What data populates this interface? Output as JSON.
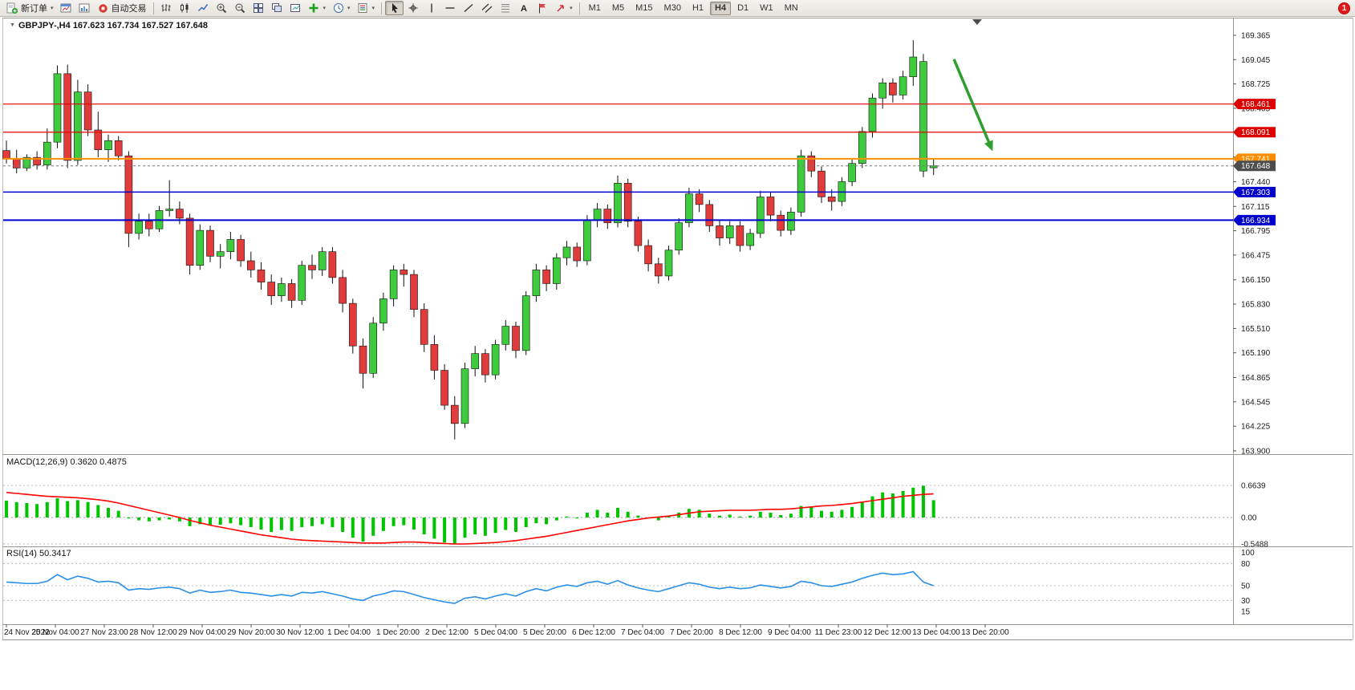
{
  "toolbar": {
    "buttons": [
      {
        "name": "new-order",
        "icon": "new-order",
        "label": "新订单",
        "dropdown": true
      },
      {
        "name": "new-chart",
        "icon": "new-chart"
      },
      {
        "name": "profiles",
        "icon": "profiles"
      },
      {
        "name": "auto-trading",
        "icon": "auto-trading",
        "label": "自动交易"
      },
      {
        "sep": true
      },
      {
        "name": "bar-chart",
        "icon": "bars"
      },
      {
        "name": "candlestick-chart",
        "icon": "candles"
      },
      {
        "name": "line-chart",
        "icon": "line"
      },
      {
        "name": "zoom-in",
        "icon": "zoom-in"
      },
      {
        "name": "zoom-out",
        "icon": "zoom-out"
      },
      {
        "name": "tile-windows",
        "icon": "tile"
      },
      {
        "name": "cascade-windows",
        "icon": "arrange"
      },
      {
        "name": "track-chart",
        "icon": "track"
      },
      {
        "name": "indicators",
        "icon": "indicators",
        "dropdown": true
      },
      {
        "name": "periods",
        "icon": "periods",
        "dropdown": true
      },
      {
        "name": "templates",
        "icon": "templates",
        "dropdown": true
      },
      {
        "sep": true
      },
      {
        "name": "cursor",
        "icon": "cursor",
        "active": true
      },
      {
        "name": "crosshair",
        "icon": "crosshair"
      },
      {
        "name": "vertical-line",
        "icon": "vline"
      },
      {
        "name": "horizontal-line",
        "icon": "hline"
      },
      {
        "name": "trendline",
        "icon": "trendline"
      },
      {
        "name": "equidistant-channel",
        "icon": "channel"
      },
      {
        "name": "fibonacci-retracement",
        "icon": "fibo"
      },
      {
        "name": "text",
        "icon": "text"
      },
      {
        "name": "text-label",
        "icon": "label"
      },
      {
        "name": "arrows",
        "icon": "arrows",
        "dropdown": true
      },
      {
        "sep": true
      }
    ],
    "timeframes": [
      "M1",
      "M5",
      "M15",
      "M30",
      "H1",
      "H4",
      "D1",
      "W1",
      "MN"
    ],
    "active_timeframe": "H4",
    "notification_badge": "1"
  },
  "chart_data": {
    "type": "candlestick",
    "title": "GBPJPY-,H4",
    "ohlc_line": "167.623 167.734 167.527 167.648",
    "colors": {
      "up": "#3ecc3e",
      "down": "#e13b3b",
      "wick": "#111111"
    },
    "price_ticks": [
      "169.365",
      "169.045",
      "168.725",
      "168.405",
      "168.085",
      "167.765",
      "167.440",
      "167.115",
      "166.795",
      "166.475",
      "166.150",
      "165.830",
      "165.510",
      "165.190",
      "164.865",
      "164.545",
      "164.225",
      "163.900"
    ],
    "time_labels": [
      "24 Nov 2022",
      "25 Nov 04:00",
      "27 Nov 23:00",
      "28 Nov 12:00",
      "29 Nov 04:00",
      "29 Nov 20:00",
      "30 Nov 12:00",
      "1 Dec 04:00",
      "1 Dec 20:00",
      "2 Dec 12:00",
      "5 Dec 04:00",
      "5 Dec 20:00",
      "6 Dec 12:00",
      "7 Dec 04:00",
      "7 Dec 20:00",
      "8 Dec 12:00",
      "9 Dec 04:00",
      "11 Dec 23:00",
      "12 Dec 12:00",
      "13 Dec 04:00",
      "13 Dec 20:00"
    ],
    "levels": [
      {
        "label": "168.461",
        "price": 168.461,
        "color": "#e00000",
        "width": 1.2,
        "tag_bg": "#dd0000"
      },
      {
        "label": "168.091",
        "price": 168.091,
        "color": "#e00000",
        "width": 1.2,
        "tag_bg": "#dd0000"
      },
      {
        "label": "167.741",
        "price": 167.741,
        "color": "#ff9100",
        "width": 2,
        "tag_bg": "#ff8c00"
      },
      {
        "label": "167.303",
        "price": 167.303,
        "color": "#0000d0",
        "width": 1.5,
        "tag_bg": "#0000cc"
      },
      {
        "label": "166.934",
        "price": 166.934,
        "color": "#0000d0",
        "width": 2,
        "tag_bg": "#0000cc"
      }
    ],
    "current_price": {
      "label": "167.648",
      "price": 167.648,
      "tag_bg": "#4d4d4d"
    },
    "arrow_annotation": {
      "color": "#2f9e2f",
      "from": {
        "bar": 93,
        "price": 169.05
      },
      "to": {
        "bar": 96.8,
        "price": 167.84
      }
    },
    "candles": [
      [
        167.85,
        167.98,
        167.68,
        167.74
      ],
      [
        167.74,
        167.86,
        167.55,
        167.62
      ],
      [
        167.62,
        167.8,
        167.58,
        167.76
      ],
      [
        167.76,
        167.84,
        167.6,
        167.66
      ],
      [
        167.66,
        168.14,
        167.6,
        167.96
      ],
      [
        167.96,
        168.97,
        167.88,
        168.86
      ],
      [
        168.86,
        168.98,
        167.62,
        167.72
      ],
      [
        167.72,
        168.78,
        167.66,
        168.62
      ],
      [
        168.62,
        168.72,
        168.04,
        168.12
      ],
      [
        168.12,
        168.36,
        167.76,
        167.86
      ],
      [
        167.86,
        168.06,
        167.7,
        167.98
      ],
      [
        167.98,
        168.04,
        167.72,
        167.78
      ],
      [
        167.78,
        167.84,
        166.58,
        166.76
      ],
      [
        166.76,
        167.02,
        166.68,
        166.92
      ],
      [
        166.92,
        167.02,
        166.72,
        166.82
      ],
      [
        166.82,
        167.12,
        166.78,
        167.06
      ],
      [
        167.06,
        167.46,
        166.98,
        167.08
      ],
      [
        167.08,
        167.18,
        166.88,
        166.96
      ],
      [
        166.96,
        167.02,
        166.22,
        166.34
      ],
      [
        166.34,
        166.88,
        166.28,
        166.8
      ],
      [
        166.8,
        166.86,
        166.38,
        166.46
      ],
      [
        166.46,
        166.62,
        166.3,
        166.52
      ],
      [
        166.52,
        166.78,
        166.42,
        166.68
      ],
      [
        166.68,
        166.74,
        166.32,
        166.4
      ],
      [
        166.4,
        166.52,
        166.18,
        166.28
      ],
      [
        166.28,
        166.38,
        166.02,
        166.12
      ],
      [
        166.12,
        166.22,
        165.82,
        165.94
      ],
      [
        165.94,
        166.18,
        165.86,
        166.1
      ],
      [
        166.1,
        166.16,
        165.78,
        165.88
      ],
      [
        165.88,
        166.4,
        165.82,
        166.34
      ],
      [
        166.34,
        166.48,
        166.16,
        166.28
      ],
      [
        166.28,
        166.58,
        166.2,
        166.52
      ],
      [
        166.52,
        166.58,
        166.1,
        166.18
      ],
      [
        166.18,
        166.28,
        165.72,
        165.84
      ],
      [
        165.84,
        165.9,
        165.18,
        165.28
      ],
      [
        165.28,
        165.38,
        164.72,
        164.92
      ],
      [
        164.92,
        165.66,
        164.86,
        165.58
      ],
      [
        165.58,
        165.98,
        165.48,
        165.9
      ],
      [
        165.9,
        166.34,
        165.8,
        166.28
      ],
      [
        166.28,
        166.36,
        166.06,
        166.22
      ],
      [
        166.22,
        166.28,
        165.66,
        165.76
      ],
      [
        165.76,
        165.84,
        165.2,
        165.3
      ],
      [
        165.3,
        165.42,
        164.84,
        164.96
      ],
      [
        164.96,
        165.04,
        164.44,
        164.5
      ],
      [
        164.5,
        164.62,
        164.05,
        164.26
      ],
      [
        164.26,
        165.06,
        164.2,
        164.98
      ],
      [
        164.98,
        165.28,
        164.88,
        165.18
      ],
      [
        165.18,
        165.24,
        164.8,
        164.9
      ],
      [
        164.9,
        165.36,
        164.84,
        165.3
      ],
      [
        165.3,
        165.62,
        165.22,
        165.54
      ],
      [
        165.54,
        165.6,
        165.12,
        165.22
      ],
      [
        165.22,
        166.0,
        165.16,
        165.94
      ],
      [
        165.94,
        166.36,
        165.86,
        166.28
      ],
      [
        166.28,
        166.34,
        166.0,
        166.1
      ],
      [
        166.1,
        166.5,
        166.02,
        166.44
      ],
      [
        166.44,
        166.66,
        166.34,
        166.58
      ],
      [
        166.58,
        166.64,
        166.32,
        166.4
      ],
      [
        166.4,
        167.0,
        166.34,
        166.94
      ],
      [
        166.94,
        167.16,
        166.84,
        167.08
      ],
      [
        167.08,
        167.14,
        166.82,
        166.9
      ],
      [
        166.9,
        167.52,
        166.84,
        167.42
      ],
      [
        167.42,
        167.48,
        166.84,
        166.92
      ],
      [
        166.92,
        166.98,
        166.52,
        166.6
      ],
      [
        166.6,
        166.68,
        166.26,
        166.36
      ],
      [
        166.36,
        166.44,
        166.1,
        166.2
      ],
      [
        166.2,
        166.6,
        166.14,
        166.54
      ],
      [
        166.54,
        166.96,
        166.48,
        166.9
      ],
      [
        166.9,
        167.36,
        166.84,
        167.28
      ],
      [
        167.28,
        167.34,
        167.04,
        167.14
      ],
      [
        167.14,
        167.2,
        166.78,
        166.86
      ],
      [
        166.86,
        166.94,
        166.6,
        166.7
      ],
      [
        166.7,
        166.92,
        166.62,
        166.86
      ],
      [
        166.86,
        166.92,
        166.52,
        166.6
      ],
      [
        166.6,
        166.82,
        166.54,
        166.76
      ],
      [
        166.76,
        167.32,
        166.7,
        167.24
      ],
      [
        167.24,
        167.3,
        166.92,
        167.0
      ],
      [
        167.0,
        167.06,
        166.72,
        166.8
      ],
      [
        166.8,
        167.1,
        166.74,
        167.04
      ],
      [
        167.04,
        167.86,
        166.98,
        167.78
      ],
      [
        167.78,
        167.84,
        167.5,
        167.58
      ],
      [
        167.58,
        167.64,
        167.16,
        167.24
      ],
      [
        167.24,
        167.34,
        167.06,
        167.18
      ],
      [
        167.18,
        167.5,
        167.12,
        167.44
      ],
      [
        167.44,
        167.74,
        167.38,
        167.68
      ],
      [
        167.68,
        168.16,
        167.62,
        168.1
      ],
      [
        168.1,
        168.6,
        168.02,
        168.54
      ],
      [
        168.54,
        168.8,
        168.4,
        168.74
      ],
      [
        168.74,
        168.8,
        168.48,
        168.58
      ],
      [
        168.58,
        168.9,
        168.52,
        168.82
      ],
      [
        168.82,
        169.3,
        168.7,
        169.08
      ],
      [
        167.58,
        169.12,
        167.5,
        169.02
      ],
      [
        167.623,
        167.734,
        167.527,
        167.648
      ]
    ]
  },
  "macd": {
    "label": "MACD(12,26,9) 0.3620 0.4875",
    "histogram_color": "#00c400",
    "signal_color": "#ff0000",
    "scale": [
      {
        "v": 0.6639,
        "label": "0.6639"
      },
      {
        "v": 0,
        "label": "0.00"
      },
      {
        "v": -0.5488,
        "label": "-0.5488"
      }
    ],
    "histogram": [
      0.35,
      0.32,
      0.3,
      0.28,
      0.32,
      0.4,
      0.34,
      0.36,
      0.32,
      0.26,
      0.2,
      0.14,
      -0.02,
      -0.06,
      -0.08,
      -0.06,
      -0.04,
      -0.08,
      -0.18,
      -0.14,
      -0.16,
      -0.15,
      -0.12,
      -0.16,
      -0.2,
      -0.25,
      -0.3,
      -0.26,
      -0.28,
      -0.2,
      -0.18,
      -0.14,
      -0.2,
      -0.3,
      -0.42,
      -0.5,
      -0.38,
      -0.28,
      -0.18,
      -0.16,
      -0.25,
      -0.35,
      -0.44,
      -0.52,
      -0.55,
      -0.42,
      -0.35,
      -0.38,
      -0.32,
      -0.26,
      -0.3,
      -0.2,
      -0.12,
      -0.14,
      -0.06,
      0.02,
      -0.02,
      0.1,
      0.16,
      0.1,
      0.2,
      0.12,
      0.04,
      -0.02,
      -0.06,
      0.02,
      0.1,
      0.18,
      0.16,
      0.08,
      0.04,
      0.06,
      0.02,
      0.04,
      0.12,
      0.1,
      0.05,
      0.08,
      0.24,
      0.22,
      0.14,
      0.12,
      0.16,
      0.22,
      0.32,
      0.44,
      0.52,
      0.5,
      0.55,
      0.62,
      0.66,
      0.36
    ],
    "signal": [
      0.52,
      0.5,
      0.48,
      0.46,
      0.44,
      0.43,
      0.42,
      0.41,
      0.39,
      0.37,
      0.34,
      0.3,
      0.25,
      0.2,
      0.15,
      0.1,
      0.05,
      0.0,
      -0.06,
      -0.11,
      -0.16,
      -0.2,
      -0.24,
      -0.28,
      -0.32,
      -0.36,
      -0.39,
      -0.42,
      -0.45,
      -0.47,
      -0.48,
      -0.49,
      -0.5,
      -0.51,
      -0.52,
      -0.53,
      -0.53,
      -0.53,
      -0.52,
      -0.51,
      -0.51,
      -0.52,
      -0.53,
      -0.54,
      -0.55,
      -0.55,
      -0.54,
      -0.53,
      -0.52,
      -0.5,
      -0.48,
      -0.45,
      -0.42,
      -0.39,
      -0.35,
      -0.31,
      -0.27,
      -0.23,
      -0.19,
      -0.15,
      -0.11,
      -0.07,
      -0.04,
      -0.01,
      0.01,
      0.03,
      0.06,
      0.09,
      0.12,
      0.13,
      0.14,
      0.15,
      0.15,
      0.15,
      0.16,
      0.17,
      0.17,
      0.18,
      0.2,
      0.22,
      0.24,
      0.25,
      0.27,
      0.29,
      0.32,
      0.35,
      0.38,
      0.41,
      0.44,
      0.46,
      0.48,
      0.49
    ]
  },
  "rsi": {
    "label": "RSI(14) 50.3417",
    "line_color": "#2a8fe8",
    "scale": [
      {
        "v": 100,
        "label": "100",
        "line": false
      },
      {
        "v": 80,
        "label": "80",
        "line": true
      },
      {
        "v": 50,
        "label": "50",
        "line": true
      },
      {
        "v": 30,
        "label": "30",
        "line": true
      },
      {
        "v": 15,
        "label": "15",
        "line": false
      }
    ],
    "values": [
      55,
      54,
      53,
      53,
      56,
      65,
      58,
      63,
      60,
      55,
      56,
      54,
      44,
      46,
      45,
      47,
      48,
      46,
      40,
      44,
      41,
      42,
      44,
      41,
      40,
      38,
      36,
      38,
      36,
      41,
      40,
      42,
      39,
      36,
      32,
      30,
      36,
      39,
      43,
      42,
      38,
      34,
      31,
      28,
      26,
      33,
      35,
      32,
      36,
      39,
      36,
      42,
      46,
      43,
      48,
      51,
      49,
      54,
      56,
      52,
      57,
      51,
      47,
      44,
      42,
      46,
      50,
      54,
      52,
      48,
      46,
      48,
      46,
      47,
      51,
      49,
      47,
      49,
      56,
      54,
      50,
      49,
      52,
      55,
      60,
      64,
      67,
      65,
      66,
      69,
      55,
      50
    ]
  }
}
